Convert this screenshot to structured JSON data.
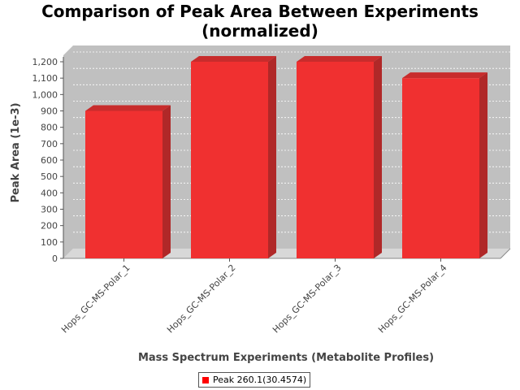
{
  "chart_data": {
    "type": "bar",
    "title": "Comparison of Peak Area Between Experiments\n(normalized)",
    "title_lines": [
      "Comparison of Peak Area Between Experiments",
      "(normalized)"
    ],
    "xlabel": "Mass Spectrum Experiments (Metabolite Profiles)",
    "ylabel": "Peak Area (1e-3)",
    "categories": [
      "Hops_GC-MS-Polar_1",
      "Hops_GC-MS-Polar_2",
      "Hops_GC-MS-Polar_3",
      "Hops_GC-MS-Polar_4"
    ],
    "series": [
      {
        "name": "Peak 260.1(30.4574)",
        "values": [
          900,
          1200,
          1200,
          1100
        ]
      }
    ],
    "ylim": [
      0,
      1200
    ],
    "yticks": [
      "0",
      "100",
      "200",
      "300",
      "400",
      "500",
      "600",
      "700",
      "800",
      "900",
      "1,000",
      "1,100",
      "1,200"
    ],
    "grid": true,
    "legend_position": "bottom",
    "colors": {
      "bar_front": "#f03030",
      "bar_side": "#b02828",
      "bar_top": "#c82c2c",
      "plot_bg": "#c0c0c0",
      "floor": "#d8d8d8"
    }
  }
}
